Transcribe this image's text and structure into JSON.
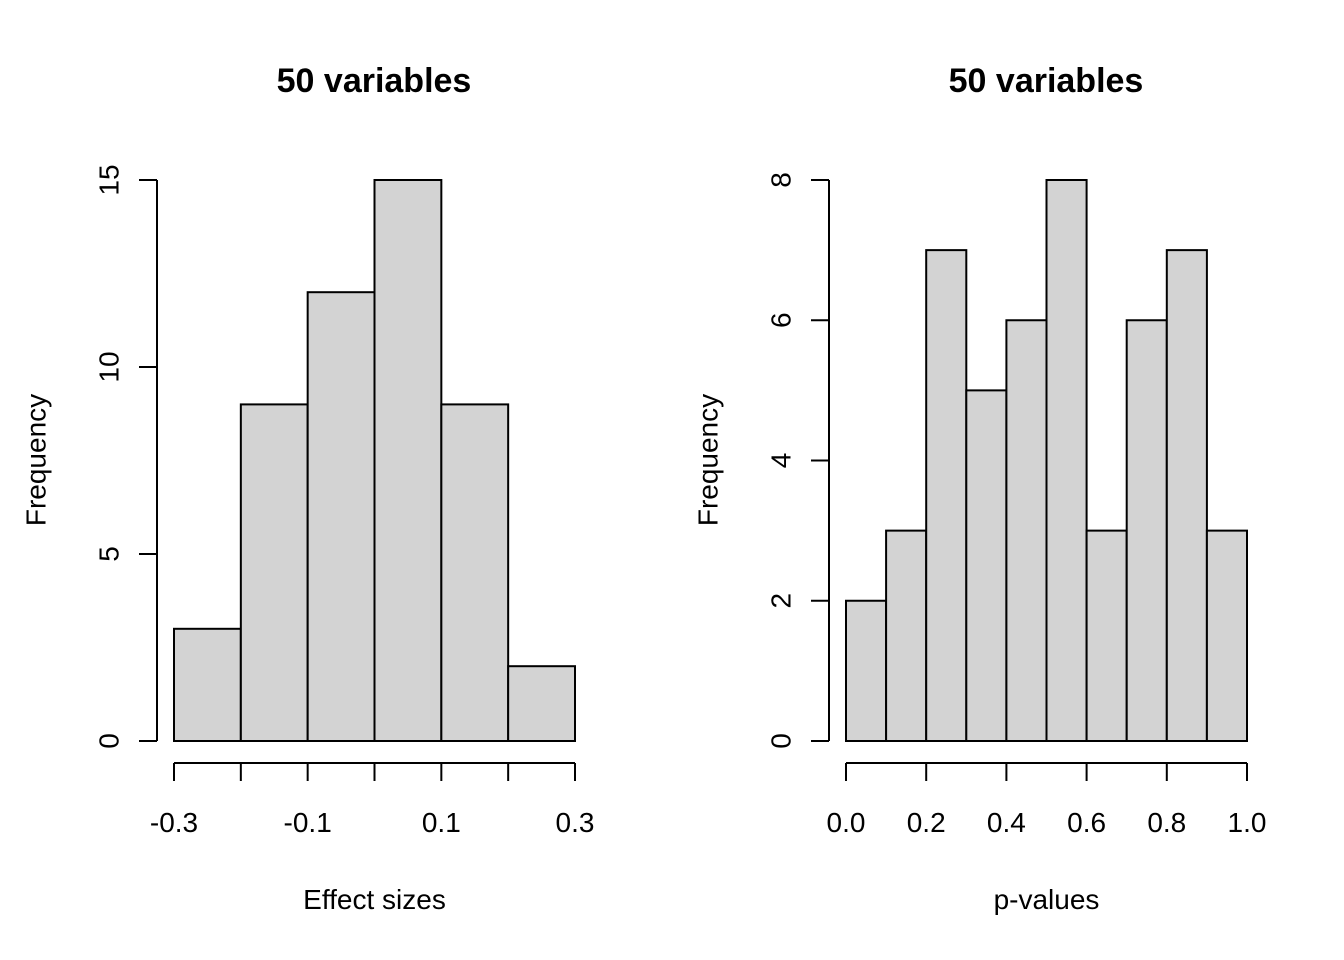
{
  "chart_data": [
    {
      "type": "bar",
      "title": "50 variables",
      "xlabel": "Effect sizes",
      "ylabel": "Frequency",
      "bins": [
        [
          -0.3,
          -0.2
        ],
        [
          -0.2,
          -0.1
        ],
        [
          -0.1,
          0.0
        ],
        [
          0.0,
          0.1
        ],
        [
          0.1,
          0.2
        ],
        [
          0.2,
          0.3
        ]
      ],
      "values": [
        3,
        9,
        12,
        15,
        9,
        2
      ],
      "xlim": [
        -0.3,
        0.3
      ],
      "ylim": [
        0,
        15
      ],
      "x_ticks": [
        -0.3,
        -0.2,
        -0.1,
        0.0,
        0.1,
        0.2,
        0.3
      ],
      "x_tick_labels": [
        "-0.3",
        "",
        "-0.1",
        "",
        "0.1",
        "",
        "0.3"
      ],
      "y_ticks": [
        0,
        5,
        10,
        15
      ],
      "y_tick_labels": [
        "0",
        "5",
        "10",
        "15"
      ],
      "bar_color": "#d3d3d3",
      "grid": false
    },
    {
      "type": "bar",
      "title": "50 variables",
      "xlabel": "p-values",
      "ylabel": "Frequency",
      "bins": [
        [
          0.0,
          0.1
        ],
        [
          0.1,
          0.2
        ],
        [
          0.2,
          0.3
        ],
        [
          0.3,
          0.4
        ],
        [
          0.4,
          0.5
        ],
        [
          0.5,
          0.6
        ],
        [
          0.6,
          0.7
        ],
        [
          0.7,
          0.8
        ],
        [
          0.8,
          0.9
        ],
        [
          0.9,
          1.0
        ]
      ],
      "values": [
        2,
        3,
        7,
        5,
        6,
        8,
        3,
        6,
        7,
        3
      ],
      "xlim": [
        0.0,
        1.0
      ],
      "ylim": [
        0,
        8
      ],
      "x_ticks": [
        0.0,
        0.2,
        0.4,
        0.6,
        0.8,
        1.0
      ],
      "x_tick_labels": [
        "0.0",
        "0.2",
        "0.4",
        "0.6",
        "0.8",
        "1.0"
      ],
      "y_ticks": [
        0,
        2,
        4,
        6,
        8
      ],
      "y_tick_labels": [
        "0",
        "2",
        "4",
        "6",
        "8"
      ],
      "bar_color": "#d3d3d3",
      "grid": false
    }
  ]
}
